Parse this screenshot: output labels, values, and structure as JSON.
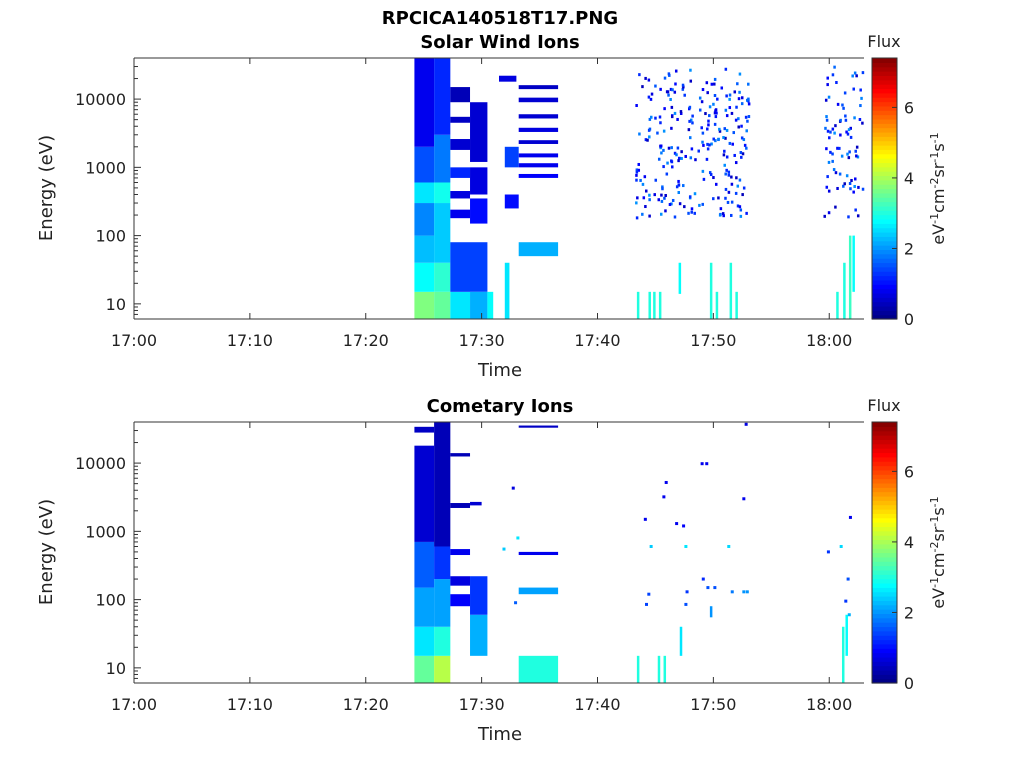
{
  "figure_title": "RPCICA140518T17.PNG",
  "chart_data": [
    {
      "type": "heatmap",
      "title": "Solar Wind Ions",
      "xlabel": "Time",
      "ylabel": "Energy (eV)",
      "x_ticks": [
        "17:00",
        "17:10",
        "17:20",
        "17:30",
        "17:40",
        "17:50",
        "18:00"
      ],
      "xlim_minutes": [
        0,
        63
      ],
      "y_scale": "log",
      "y_ticks": [
        "10",
        "100",
        "1000",
        "10000"
      ],
      "ylim": [
        6,
        40000
      ],
      "colorbar": {
        "label": "Flux",
        "unit_label": "eV-1cm-2sr-1s-1",
        "ticks": [
          "0",
          "2",
          "4",
          "6"
        ],
        "range": [
          0,
          7.4
        ],
        "colormap": "jet"
      },
      "cells": [
        {
          "t0": 24.2,
          "t1": 25.9,
          "e0": 6,
          "e1": 15,
          "v": 3.7
        },
        {
          "t0": 24.2,
          "t1": 25.9,
          "e0": 15,
          "e1": 40,
          "v": 2.8
        },
        {
          "t0": 24.2,
          "t1": 25.9,
          "e0": 40,
          "e1": 100,
          "v": 2.3
        },
        {
          "t0": 24.2,
          "t1": 25.9,
          "e0": 100,
          "e1": 300,
          "v": 1.9
        },
        {
          "t0": 24.2,
          "t1": 25.9,
          "e0": 300,
          "e1": 600,
          "v": 2.6
        },
        {
          "t0": 24.2,
          "t1": 25.9,
          "e0": 600,
          "e1": 2000,
          "v": 1.5
        },
        {
          "t0": 24.2,
          "t1": 25.9,
          "e0": 2000,
          "e1": 40000,
          "v": 0.8
        },
        {
          "t0": 25.9,
          "t1": 27.3,
          "e0": 6,
          "e1": 15,
          "v": 3.5
        },
        {
          "t0": 25.9,
          "t1": 27.3,
          "e0": 15,
          "e1": 40,
          "v": 3.1
        },
        {
          "t0": 25.9,
          "t1": 27.3,
          "e0": 40,
          "e1": 300,
          "v": 2.4
        },
        {
          "t0": 25.9,
          "t1": 27.3,
          "e0": 300,
          "e1": 600,
          "v": 2.9
        },
        {
          "t0": 25.9,
          "t1": 27.3,
          "e0": 600,
          "e1": 3000,
          "v": 1.8
        },
        {
          "t0": 25.9,
          "t1": 27.3,
          "e0": 3000,
          "e1": 40000,
          "v": 1.2
        },
        {
          "t0": 27.3,
          "t1": 29.0,
          "e0": 6,
          "e1": 15,
          "v": 2.6
        },
        {
          "t0": 27.3,
          "t1": 30.5,
          "e0": 15,
          "e1": 80,
          "v": 1.4
        },
        {
          "t0": 29.0,
          "t1": 30.5,
          "e0": 6,
          "e1": 15,
          "v": 2.2
        },
        {
          "t0": 30.5,
          "t1": 31.0,
          "e0": 6,
          "e1": 15,
          "v": 2.8
        },
        {
          "t0": 32.0,
          "t1": 32.4,
          "e0": 6,
          "e1": 40,
          "v": 2.6
        },
        {
          "t0": 33.2,
          "t1": 36.6,
          "e0": 50,
          "e1": 80,
          "v": 2.2
        },
        {
          "t0": 27.3,
          "t1": 29.0,
          "e0": 9000,
          "e1": 15000,
          "v": 0.4
        },
        {
          "t0": 27.3,
          "t1": 29.0,
          "e0": 4500,
          "e1": 5500,
          "v": 0.5
        },
        {
          "t0": 27.3,
          "t1": 29.0,
          "e0": 1800,
          "e1": 2600,
          "v": 0.6
        },
        {
          "t0": 27.3,
          "t1": 29.0,
          "e0": 700,
          "e1": 1000,
          "v": 1.2
        },
        {
          "t0": 27.3,
          "t1": 29.0,
          "e0": 350,
          "e1": 450,
          "v": 0.7
        },
        {
          "t0": 27.3,
          "t1": 29.0,
          "e0": 180,
          "e1": 240,
          "v": 0.8
        },
        {
          "t0": 29.0,
          "t1": 30.5,
          "e0": 1200,
          "e1": 9000,
          "v": 0.6
        },
        {
          "t0": 29.0,
          "t1": 30.5,
          "e0": 400,
          "e1": 1000,
          "v": 0.7
        },
        {
          "t0": 29.0,
          "t1": 30.5,
          "e0": 150,
          "e1": 350,
          "v": 1.0
        },
        {
          "t0": 33.2,
          "t1": 36.6,
          "e0": 14000,
          "e1": 16000,
          "v": 0.5
        },
        {
          "t0": 33.2,
          "t1": 36.6,
          "e0": 9000,
          "e1": 10500,
          "v": 0.6
        },
        {
          "t0": 33.2,
          "t1": 36.6,
          "e0": 5200,
          "e1": 6000,
          "v": 0.6
        },
        {
          "t0": 33.2,
          "t1": 36.6,
          "e0": 3300,
          "e1": 3800,
          "v": 0.7
        },
        {
          "t0": 33.2,
          "t1": 36.6,
          "e0": 2200,
          "e1": 2500,
          "v": 0.6
        },
        {
          "t0": 33.2,
          "t1": 36.6,
          "e0": 1400,
          "e1": 1600,
          "v": 0.8
        },
        {
          "t0": 33.2,
          "t1": 36.6,
          "e0": 1000,
          "e1": 1150,
          "v": 0.8
        },
        {
          "t0": 33.2,
          "t1": 36.6,
          "e0": 700,
          "e1": 800,
          "v": 0.9
        },
        {
          "t0": 31.5,
          "t1": 33.0,
          "e0": 18000,
          "e1": 22000,
          "v": 0.7
        },
        {
          "t0": 32.0,
          "t1": 33.2,
          "e0": 1000,
          "e1": 2000,
          "v": 1.4
        },
        {
          "t0": 32.0,
          "t1": 33.2,
          "e0": 250,
          "e1": 400,
          "v": 1.0
        }
      ],
      "scatter_regions": [
        {
          "t0": 43.2,
          "t1": 53.0,
          "e0": 180,
          "e1": 28000,
          "count": 260,
          "v": 0.9
        },
        {
          "t0": 59.5,
          "t1": 62.9,
          "e0": 180,
          "e1": 30000,
          "count": 80,
          "v": 0.9
        }
      ],
      "columns": [
        {
          "t": 43.4,
          "e0": 6,
          "e1": 15,
          "v": 3.0
        },
        {
          "t": 44.4,
          "e0": 6,
          "e1": 15,
          "v": 3.0
        },
        {
          "t": 44.8,
          "e0": 6,
          "e1": 15,
          "v": 3.0
        },
        {
          "t": 45.3,
          "e0": 6,
          "e1": 15,
          "v": 3.0
        },
        {
          "t": 47.0,
          "e0": 14,
          "e1": 40,
          "v": 2.8
        },
        {
          "t": 49.7,
          "e0": 6,
          "e1": 40,
          "v": 3.0
        },
        {
          "t": 50.2,
          "e0": 6,
          "e1": 15,
          "v": 3.0
        },
        {
          "t": 51.4,
          "e0": 6,
          "e1": 40,
          "v": 3.0
        },
        {
          "t": 51.9,
          "e0": 6,
          "e1": 15,
          "v": 3.0
        },
        {
          "t": 61.2,
          "e0": 6,
          "e1": 40,
          "v": 3.0
        },
        {
          "t": 61.7,
          "e0": 6,
          "e1": 100,
          "v": 3.2
        },
        {
          "t": 62.0,
          "e0": 15,
          "e1": 100,
          "v": 2.8
        },
        {
          "t": 60.6,
          "e0": 6,
          "e1": 15,
          "v": 3.0
        }
      ]
    },
    {
      "type": "heatmap",
      "title": "Cometary Ions",
      "xlabel": "Time",
      "ylabel": "Energy (eV)",
      "x_ticks": [
        "17:00",
        "17:10",
        "17:20",
        "17:30",
        "17:40",
        "17:50",
        "18:00"
      ],
      "xlim_minutes": [
        0,
        63
      ],
      "y_scale": "log",
      "y_ticks": [
        "10",
        "100",
        "1000",
        "10000"
      ],
      "ylim": [
        6,
        40000
      ],
      "colorbar": {
        "label": "Flux",
        "unit_label": "eV-1cm-2sr-1s-1",
        "ticks": [
          "0",
          "2",
          "4",
          "6"
        ],
        "range": [
          0,
          7.4
        ],
        "colormap": "jet"
      },
      "cells": [
        {
          "t0": 24.2,
          "t1": 25.9,
          "e0": 6,
          "e1": 15,
          "v": 3.5
        },
        {
          "t0": 24.2,
          "t1": 25.9,
          "e0": 15,
          "e1": 40,
          "v": 2.6
        },
        {
          "t0": 24.2,
          "t1": 25.9,
          "e0": 40,
          "e1": 150,
          "v": 2.1
        },
        {
          "t0": 24.2,
          "t1": 25.9,
          "e0": 150,
          "e1": 700,
          "v": 1.6
        },
        {
          "t0": 24.2,
          "t1": 25.9,
          "e0": 700,
          "e1": 18000,
          "v": 0.6
        },
        {
          "t0": 24.2,
          "t1": 25.9,
          "e0": 28000,
          "e1": 34000,
          "v": 0.5
        },
        {
          "t0": 25.9,
          "t1": 27.3,
          "e0": 6,
          "e1": 15,
          "v": 4.1
        },
        {
          "t0": 25.9,
          "t1": 27.3,
          "e0": 15,
          "e1": 40,
          "v": 3.0
        },
        {
          "t0": 25.9,
          "t1": 27.3,
          "e0": 40,
          "e1": 200,
          "v": 2.1
        },
        {
          "t0": 25.9,
          "t1": 27.3,
          "e0": 200,
          "e1": 600,
          "v": 1.3
        },
        {
          "t0": 25.9,
          "t1": 27.3,
          "e0": 600,
          "e1": 40000,
          "v": 0.4
        },
        {
          "t0": 27.3,
          "t1": 29.0,
          "e0": 80,
          "e1": 120,
          "v": 0.9
        },
        {
          "t0": 27.3,
          "t1": 29.0,
          "e0": 160,
          "e1": 220,
          "v": 0.7
        },
        {
          "t0": 27.3,
          "t1": 29.0,
          "e0": 450,
          "e1": 550,
          "v": 0.8
        },
        {
          "t0": 27.3,
          "t1": 29.0,
          "e0": 2200,
          "e1": 2600,
          "v": 0.4
        },
        {
          "t0": 27.3,
          "t1": 29.0,
          "e0": 12500,
          "e1": 14000,
          "v": 0.4
        },
        {
          "t0": 29.0,
          "t1": 30.5,
          "e0": 15,
          "e1": 60,
          "v": 2.2
        },
        {
          "t0": 29.0,
          "t1": 30.5,
          "e0": 60,
          "e1": 220,
          "v": 1.3
        },
        {
          "t0": 29.0,
          "t1": 30.0,
          "e0": 2400,
          "e1": 2700,
          "v": 0.6
        },
        {
          "t0": 33.2,
          "t1": 36.6,
          "e0": 6,
          "e1": 15,
          "v": 3.0
        },
        {
          "t0": 33.2,
          "t1": 36.6,
          "e0": 120,
          "e1": 150,
          "v": 2.1
        },
        {
          "t0": 33.2,
          "t1": 36.6,
          "e0": 450,
          "e1": 500,
          "v": 0.8
        },
        {
          "t0": 33.2,
          "t1": 36.6,
          "e0": 33000,
          "e1": 35500,
          "v": 0.5
        }
      ],
      "points": [
        {
          "t": 31.8,
          "e": 550,
          "v": 2.4
        },
        {
          "t": 32.6,
          "e": 4300,
          "v": 0.7
        },
        {
          "t": 33.0,
          "e": 800,
          "v": 2.6
        },
        {
          "t": 32.8,
          "e": 90,
          "v": 1.6
        },
        {
          "t": 44.0,
          "e": 1500,
          "v": 0.8
        },
        {
          "t": 44.3,
          "e": 120,
          "v": 1.4
        },
        {
          "t": 44.1,
          "e": 85,
          "v": 1.4
        },
        {
          "t": 44.5,
          "e": 600,
          "v": 2.4
        },
        {
          "t": 45.6,
          "e": 3200,
          "v": 0.8
        },
        {
          "t": 45.8,
          "e": 5200,
          "v": 0.8
        },
        {
          "t": 46.7,
          "e": 1300,
          "v": 0.8
        },
        {
          "t": 47.3,
          "e": 1200,
          "v": 0.9
        },
        {
          "t": 47.5,
          "e": 600,
          "v": 2.6
        },
        {
          "t": 47.6,
          "e": 130,
          "v": 1.3
        },
        {
          "t": 47.5,
          "e": 85,
          "v": 1.5
        },
        {
          "t": 48.9,
          "e": 9800,
          "v": 0.8
        },
        {
          "t": 49.3,
          "e": 9800,
          "v": 0.8
        },
        {
          "t": 49.0,
          "e": 200,
          "v": 1.2
        },
        {
          "t": 49.4,
          "e": 150,
          "v": 1.5
        },
        {
          "t": 50.0,
          "e": 150,
          "v": 1.5
        },
        {
          "t": 51.2,
          "e": 600,
          "v": 2.5
        },
        {
          "t": 51.5,
          "e": 130,
          "v": 1.8
        },
        {
          "t": 52.5,
          "e": 130,
          "v": 2.0
        },
        {
          "t": 52.8,
          "e": 130,
          "v": 2.0
        },
        {
          "t": 52.5,
          "e": 3000,
          "v": 0.8
        },
        {
          "t": 52.7,
          "e": 37000,
          "v": 0.7
        },
        {
          "t": 59.8,
          "e": 500,
          "v": 1.3
        },
        {
          "t": 60.9,
          "e": 600,
          "v": 2.5
        },
        {
          "t": 61.7,
          "e": 1600,
          "v": 0.8
        },
        {
          "t": 61.5,
          "e": 200,
          "v": 1.5
        },
        {
          "t": 61.3,
          "e": 95,
          "v": 1.3
        },
        {
          "t": 61.6,
          "e": 60,
          "v": 2.2
        }
      ],
      "columns": [
        {
          "t": 43.4,
          "e0": 6,
          "e1": 15,
          "v": 3.0
        },
        {
          "t": 45.2,
          "e0": 6,
          "e1": 15,
          "v": 3.0
        },
        {
          "t": 45.7,
          "e0": 6,
          "e1": 15,
          "v": 3.0
        },
        {
          "t": 47.1,
          "e0": 15,
          "e1": 40,
          "v": 2.6
        },
        {
          "t": 49.7,
          "e0": 55,
          "e1": 80,
          "v": 2.0
        },
        {
          "t": 61.1,
          "e0": 6,
          "e1": 40,
          "v": 3.0
        },
        {
          "t": 61.4,
          "e0": 15,
          "e1": 60,
          "v": 2.8
        }
      ]
    }
  ]
}
